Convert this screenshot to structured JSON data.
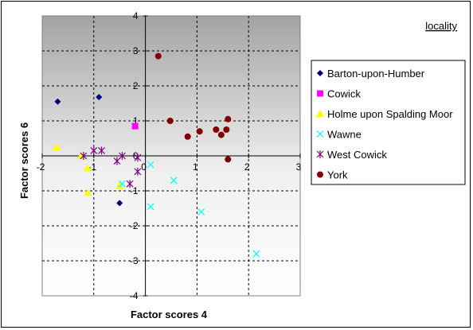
{
  "chart_data": {
    "type": "scatter",
    "title": "locality",
    "xlabel": "Factor scores 4",
    "ylabel": "Factor scores 6",
    "xlim": [
      -2,
      3
    ],
    "ylim": [
      -4,
      4
    ],
    "xticks": [
      -2,
      -1,
      0,
      1,
      2,
      3
    ],
    "yticks": [
      -4,
      -3,
      -2,
      -1,
      0,
      1,
      2,
      3,
      4
    ],
    "grid": true,
    "legend_position": "right",
    "series": [
      {
        "name": "Barton-upon-Humber",
        "marker": "diamond",
        "color": "#000080",
        "points": [
          [
            -1.7,
            1.55
          ],
          [
            -0.9,
            1.68
          ],
          [
            -0.5,
            -1.35
          ]
        ]
      },
      {
        "name": "Cowick",
        "marker": "square",
        "color": "#ff00ff",
        "points": [
          [
            -0.2,
            0.85
          ]
        ]
      },
      {
        "name": "Holme upon Spalding Moor",
        "marker": "triangle",
        "color": "#ffff00",
        "points": [
          [
            -1.72,
            0.25
          ],
          [
            -1.25,
            0.0
          ],
          [
            -1.12,
            -0.35
          ],
          [
            -1.12,
            -1.05
          ],
          [
            -0.5,
            -0.85
          ]
        ]
      },
      {
        "name": "Wawne",
        "marker": "x",
        "color": "#00ffff",
        "points": [
          [
            -0.45,
            -0.8
          ],
          [
            0.1,
            -0.25
          ],
          [
            0.55,
            -0.7
          ],
          [
            0.1,
            -1.45
          ],
          [
            1.08,
            -1.6
          ],
          [
            2.15,
            -2.8
          ]
        ]
      },
      {
        "name": "West Cowick",
        "marker": "star",
        "color": "#800080",
        "points": [
          [
            -1.2,
            0.0
          ],
          [
            -1.0,
            0.15
          ],
          [
            -0.85,
            0.15
          ],
          [
            -0.55,
            -0.15
          ],
          [
            -0.45,
            0.0
          ],
          [
            -0.3,
            -0.8
          ],
          [
            -0.15,
            -0.05
          ],
          [
            -0.15,
            -0.45
          ]
        ]
      },
      {
        "name": "York",
        "marker": "circle",
        "color": "#800000",
        "points": [
          [
            0.25,
            2.85
          ],
          [
            0.48,
            1.0
          ],
          [
            0.82,
            0.55
          ],
          [
            1.05,
            0.7
          ],
          [
            1.37,
            0.75
          ],
          [
            1.47,
            0.6
          ],
          [
            1.57,
            0.75
          ],
          [
            1.6,
            1.05
          ],
          [
            1.6,
            -0.1
          ]
        ]
      }
    ]
  }
}
